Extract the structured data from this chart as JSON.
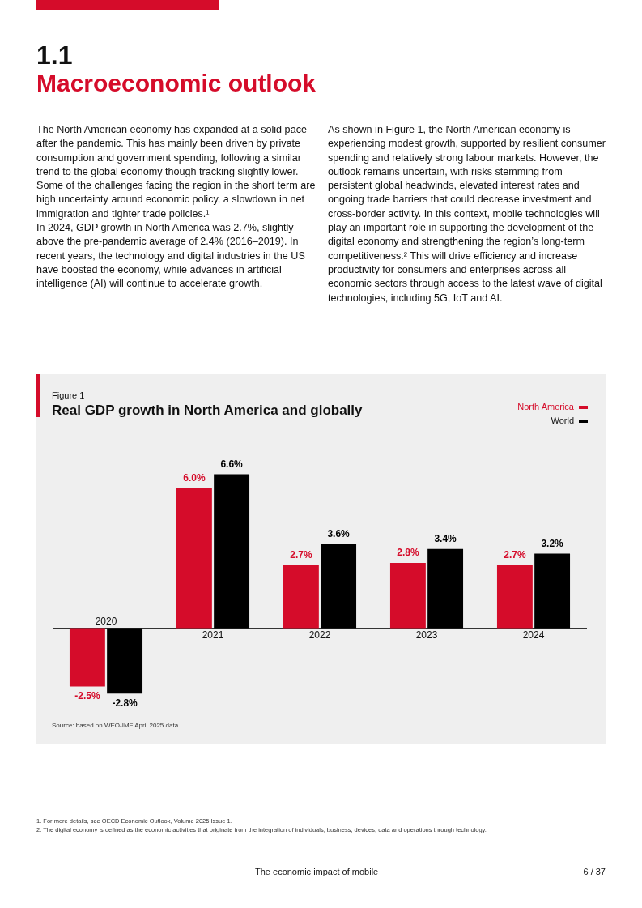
{
  "chart_data": {
    "type": "bar",
    "title": "Real GDP growth in North America and globally",
    "subtitle": "Figure 1",
    "categories": [
      "2020",
      "2021",
      "2022",
      "2023",
      "2024"
    ],
    "series": [
      {
        "name": "North America",
        "color": "#d50c2a",
        "values": [
          -2.5,
          6.0,
          2.7,
          2.8,
          2.7
        ],
        "value_labels": [
          "-2.5%",
          "6.0%",
          "2.7%",
          "2.8%",
          "2.7%"
        ]
      },
      {
        "name": "World",
        "color": "#000000",
        "values": [
          -2.8,
          6.6,
          3.6,
          3.4,
          3.2
        ],
        "value_labels": [
          "-2.8%",
          "6.6%",
          "3.6%",
          "3.4%",
          "3.2%"
        ]
      }
    ],
    "legend": "top right",
    "annotations": [
      "1.1",
      "Macroeconomic outlook",
      "The North American economy has expanded at a solid pace after the pandemic. This has mainly been driven by private consumption and government spending, following a similar trend to the global economy though tracking slightly lower. Some of the challenges facing the region in the short term are high uncertainty around economic policy, a slowdown in net immigration and tighter trade policies.¹",
      "In 2024, GDP growth in North America was 2.7%, slightly above the pre-pandemic average of 2.4% (2016–2019). In recent years, the technology and digital industries in the US have boosted the economy, while advances in artificial intelligence (AI) will continue to accelerate growth.",
      "As shown in Figure 1, the North American economy is experiencing modest growth, supported by resilient consumer spending and relatively strong labour markets. However, the outlook remains uncertain, with risks stemming from persistent global headwinds, elevated interest rates and ongoing trade barriers that could decrease investment and cross-border activity. In this context, mobile technologies will play an important role in supporting the development of the digital economy and strengthening the region’s long-term competitiveness.² This will drive efficiency and increase productivity for consumers and enterprises across all economic sectors through access to the latest wave of digital technologies, including 5G, IoT and AI.",
      "Source: based on WEO-IMF April 2025 data",
      "1.   For more details, see OECD Economic Outlook, Volume 2025 Issue 1.",
      "2.   The digital economy is defined as the economic activities that originate from the integration of individuals, business, devices, data and operations through technology.",
      "The economic impact of mobile",
      "6 / 37"
    ]
  }
}
